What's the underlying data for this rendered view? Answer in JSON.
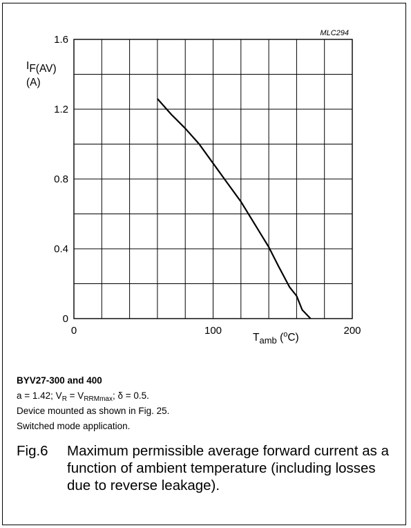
{
  "chart_data": {
    "type": "line",
    "code": "MLC294",
    "ylabel": {
      "main": "I",
      "sub": "F(AV)",
      "unit": "(A)"
    },
    "xlabel": {
      "main": "T",
      "sub": "amb",
      "unit_open": " (",
      "unit_sup": "o",
      "unit_close": "C)"
    },
    "xlim": [
      0,
      200
    ],
    "ylim": [
      0,
      1.6
    ],
    "x_ticks": [
      {
        "value": 0,
        "label": "0"
      },
      {
        "value": 100,
        "label": "100"
      },
      {
        "value": 200,
        "label": "200"
      }
    ],
    "y_ticks": [
      {
        "value": 0,
        "label": "0"
      },
      {
        "value": 0.4,
        "label": "0.4"
      },
      {
        "value": 0.8,
        "label": "0.8"
      },
      {
        "value": 1.2,
        "label": "1.2"
      },
      {
        "value": 1.6,
        "label": "1.6"
      }
    ],
    "x_grid_step": 20,
    "y_grid_step": 0.2,
    "grid": true,
    "series": [
      {
        "x": [
          60,
          70,
          80,
          90,
          100,
          110,
          120,
          130,
          140,
          147,
          155,
          160,
          164,
          170
        ],
        "y": [
          1.26,
          1.17,
          1.09,
          1.0,
          0.89,
          0.78,
          0.67,
          0.54,
          0.41,
          0.3,
          0.18,
          0.13,
          0.05,
          0.0
        ]
      }
    ]
  },
  "conditions": {
    "device": "BYV27-300 and 400",
    "line2": {
      "a": "a = 1.42; V",
      "r_sub": "R",
      "eq": " = V",
      "rrm_sub": "RRMmax",
      "delta": "; δ = 0.5."
    },
    "line3": "Device mounted as shown in Fig. 25.",
    "line4": "Switched mode application."
  },
  "figure": {
    "number": "Fig.6",
    "caption": "Maximum permissible average forward current as a function of ambient temperature (including losses due to reverse leakage)."
  }
}
